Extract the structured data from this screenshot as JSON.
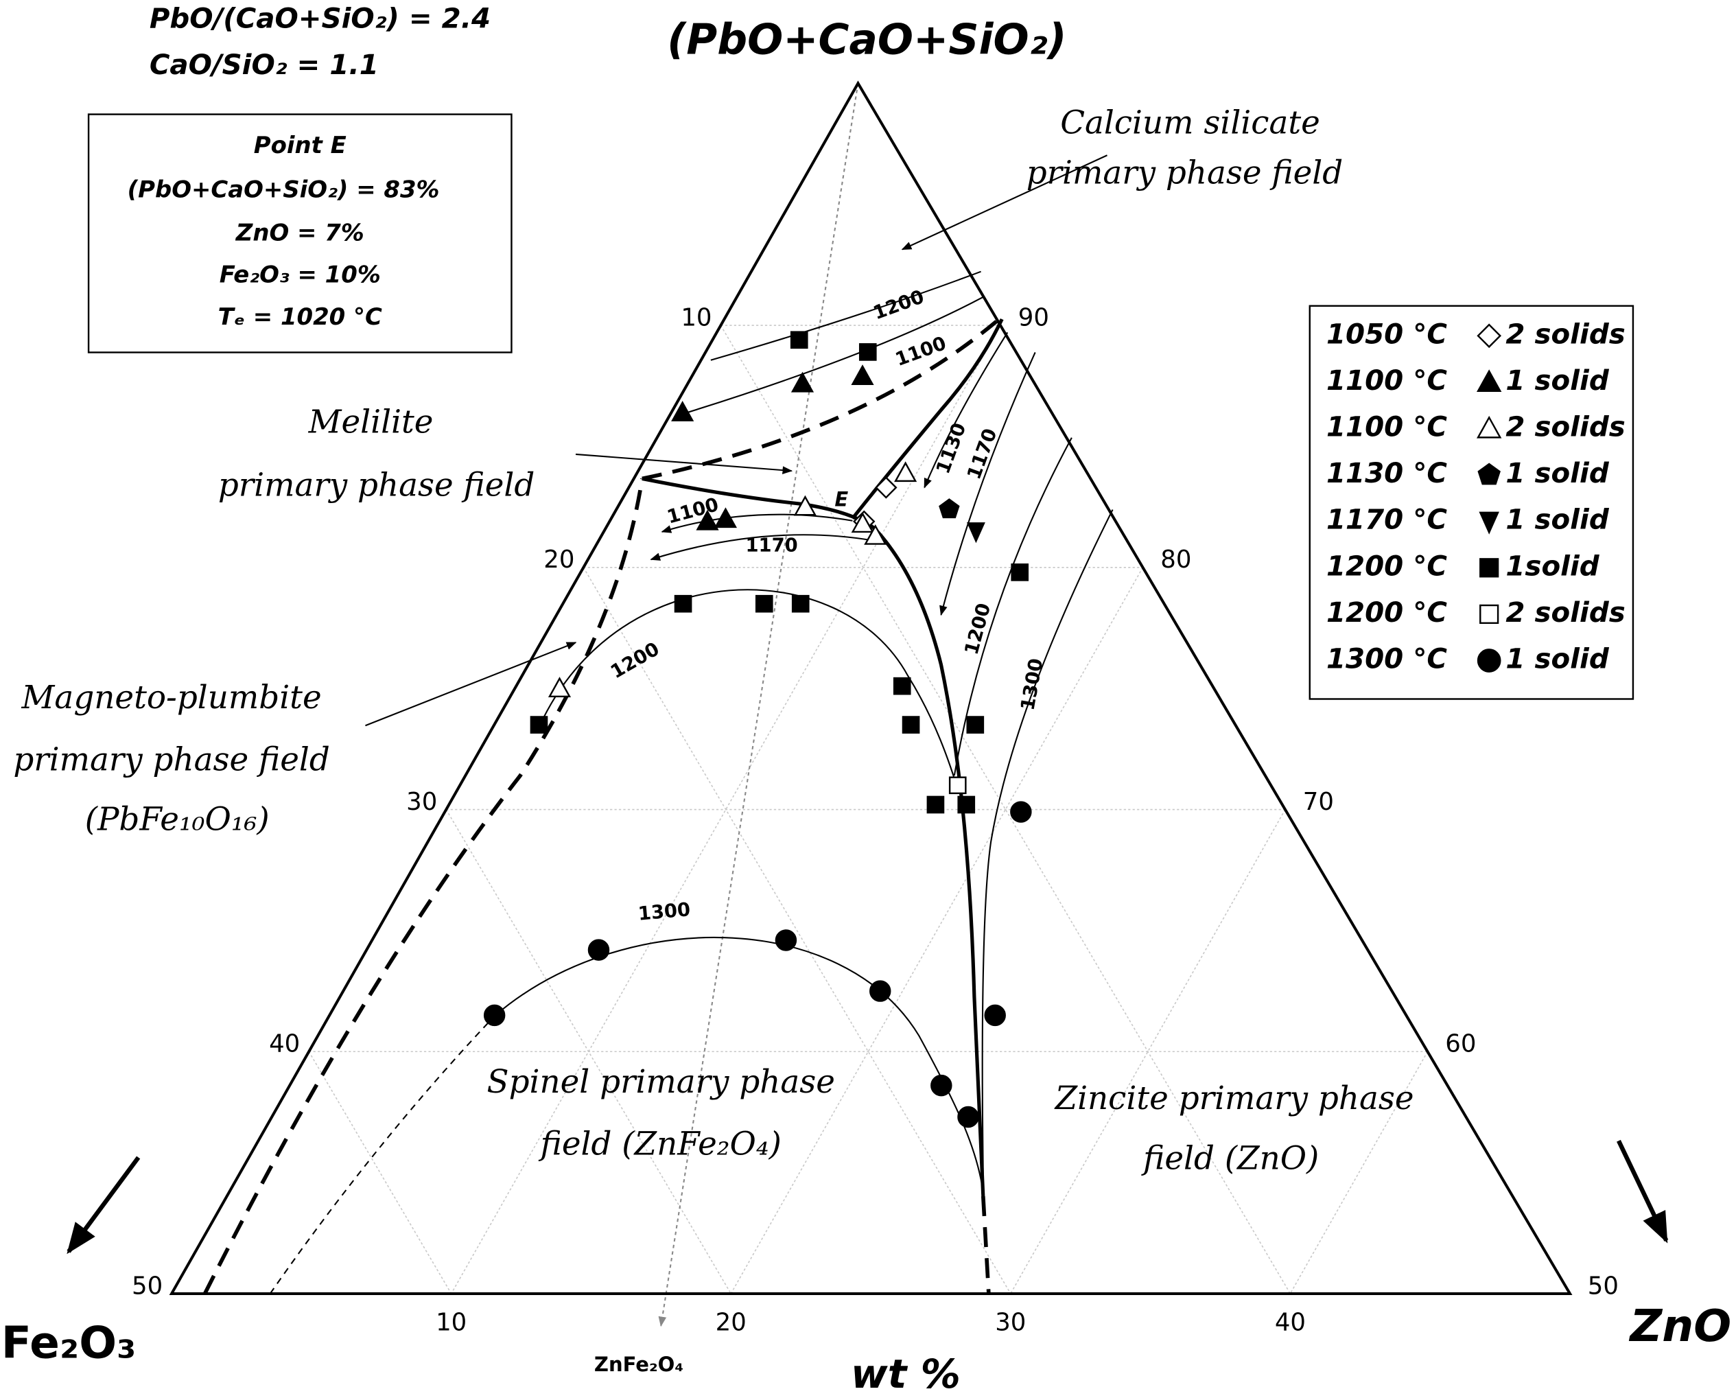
{
  "chart_data": {
    "type": "ternary",
    "title": "(PbO+CaO+SiO₂)",
    "left_label": "Fe₂O₃",
    "right_label": "ZnO",
    "axis_label": "wt %",
    "direction_label": "ZnFe₂O₄",
    "header": [
      "PbO/(CaO+SiO₂) = 2.4",
      "CaO/SiO₂ = 1.1"
    ],
    "point_e_box": [
      "Point E",
      "(PbO+CaO+SiO₂)  = 83%",
      "ZnO = 7%",
      "Fe₂O₃ = 10%",
      "Tₑ = 1020 °C"
    ],
    "field_labels": [
      "Calcium silicate",
      "primary phase field",
      "Melilite",
      "primary phase field",
      "Magneto-plumbite",
      "primary phase field",
      "(PbFe₁₀O₁₆)",
      "Spinel primary phase",
      "field (ZnFe₂O₄)",
      "Zincite primary phase",
      "field (ZnO)"
    ],
    "isotherm_labels": [
      "1200",
      "1100",
      "1130",
      "1170",
      "1100",
      "1170",
      "1200",
      "1200",
      "1300",
      "1300",
      "E"
    ],
    "zno_lim": [
      0,
      50
    ],
    "fe2o3_lim": [
      0,
      50
    ],
    "pcs_lim": [
      50,
      100
    ],
    "zno_ticks": [
      10,
      20,
      30,
      40
    ],
    "fe2o3_ticks": [
      10,
      20,
      30,
      40,
      50
    ],
    "pcs_ticks": [
      90,
      80,
      70,
      60,
      50
    ],
    "grid": true,
    "series": [
      {
        "temperature": "1050 °C",
        "phases": "2 solids",
        "marker": "diamond-open",
        "ZnO": [
          9.2,
          9.1
        ],
        "Fe2O3": [
          7.5,
          9.0
        ]
      },
      {
        "temperature": "1100 °C",
        "phases": "1 solid",
        "marker": "triangle",
        "ZnO": [
          0.4,
          4.1,
          6.1,
          3.5,
          4.1
        ],
        "Fe2O3": [
          13.2,
          8.3,
          6.0,
          14.6,
          13.9
        ]
      },
      {
        "temperature": "1100 °C",
        "phases": "2 solids",
        "marker": "triangle-open",
        "ZnO": [
          6.7,
          9.1,
          9.8,
          9.6,
          1.6
        ],
        "Fe2O3": [
          10.8,
          9.1,
          8.9,
          6.5,
          23.4
        ]
      },
      {
        "temperature": "1130 °C",
        "phases": "1 solid",
        "marker": "pentagon",
        "ZnO": [
          11.9
        ],
        "Fe2O3": [
          5.7
        ]
      },
      {
        "temperature": "1170 °C",
        "phases": "1 solid",
        "marker": "triangle-down",
        "ZnO": [
          13.3
        ],
        "Fe2O3": [
          5.2
        ]
      },
      {
        "temperature": "1200 °C",
        "phases": "1solid",
        "marker": "square",
        "ZnO": [
          3.1,
          5.8,
          4.3,
          7.2,
          8.5,
          1.6,
          13.8,
          14.9,
          17.4,
          18.5,
          17.2,
          15.7
        ],
        "Fe2O3": [
          7.5,
          5.3,
          17.2,
          14.3,
          13.0,
          24.9,
          11.1,
          11.6,
          12.4,
          11.3,
          9.3,
          4.5
        ]
      },
      {
        "temperature": "1200 °C",
        "phases": "2 solids",
        "marker": "square-open",
        "ZnO": [
          17.8
        ],
        "Fe2O3": [
          11.2
        ]
      },
      {
        "temperature": "1300 °C",
        "phases": "1 solid",
        "marker": "circle",
        "ZnO": [
          20.6,
          5.9,
          8.3,
          14.8,
          19.2,
          23.3,
          24.9,
          23.8
        ],
        "Fe2O3": [
          9.5,
          32.6,
          27.5,
          20.6,
          18.3,
          18.1,
          17.8,
          14.7
        ]
      }
    ]
  }
}
